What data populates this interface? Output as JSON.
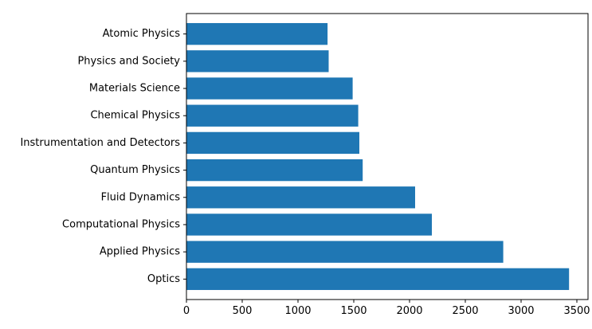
{
  "chart_data": {
    "type": "bar",
    "orientation": "horizontal",
    "title": "",
    "xlabel": "",
    "ylabel": "",
    "categories": [
      "Optics",
      "Applied Physics",
      "Computational Physics",
      "Fluid Dynamics",
      "Quantum Physics",
      "Instrumentation and Detectors",
      "Chemical Physics",
      "Materials Science",
      "Physics and Society",
      "Atomic Physics"
    ],
    "values": [
      3430,
      2840,
      2200,
      2050,
      1580,
      1550,
      1540,
      1490,
      1275,
      1265
    ],
    "xlim": [
      0,
      3600
    ],
    "xticks": [
      0,
      500,
      1000,
      1500,
      2000,
      2500,
      3000,
      3500
    ],
    "grid": false,
    "bar_color": "#1f77b4"
  }
}
